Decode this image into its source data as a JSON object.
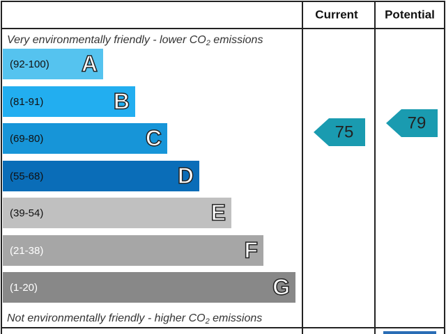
{
  "header": {
    "current": "Current",
    "potential": "Potential"
  },
  "top_note": {
    "before": "Very environmentally friendly - lower CO",
    "sub": "2",
    "after": " emissions"
  },
  "bottom_note": {
    "before": "Not environmentally friendly - higher CO",
    "sub": "2",
    "after": " emissions"
  },
  "bands": [
    {
      "range": "(92-100)",
      "letter": "A"
    },
    {
      "range": "(81-91)",
      "letter": "B"
    },
    {
      "range": "(69-80)",
      "letter": "C"
    },
    {
      "range": "(55-68)",
      "letter": "D"
    },
    {
      "range": "(39-54)",
      "letter": "E"
    },
    {
      "range": "(21-38)",
      "letter": "F"
    },
    {
      "range": "(1-20)",
      "letter": "G"
    }
  ],
  "current": {
    "value": 75
  },
  "potential": {
    "value": 79
  }
}
